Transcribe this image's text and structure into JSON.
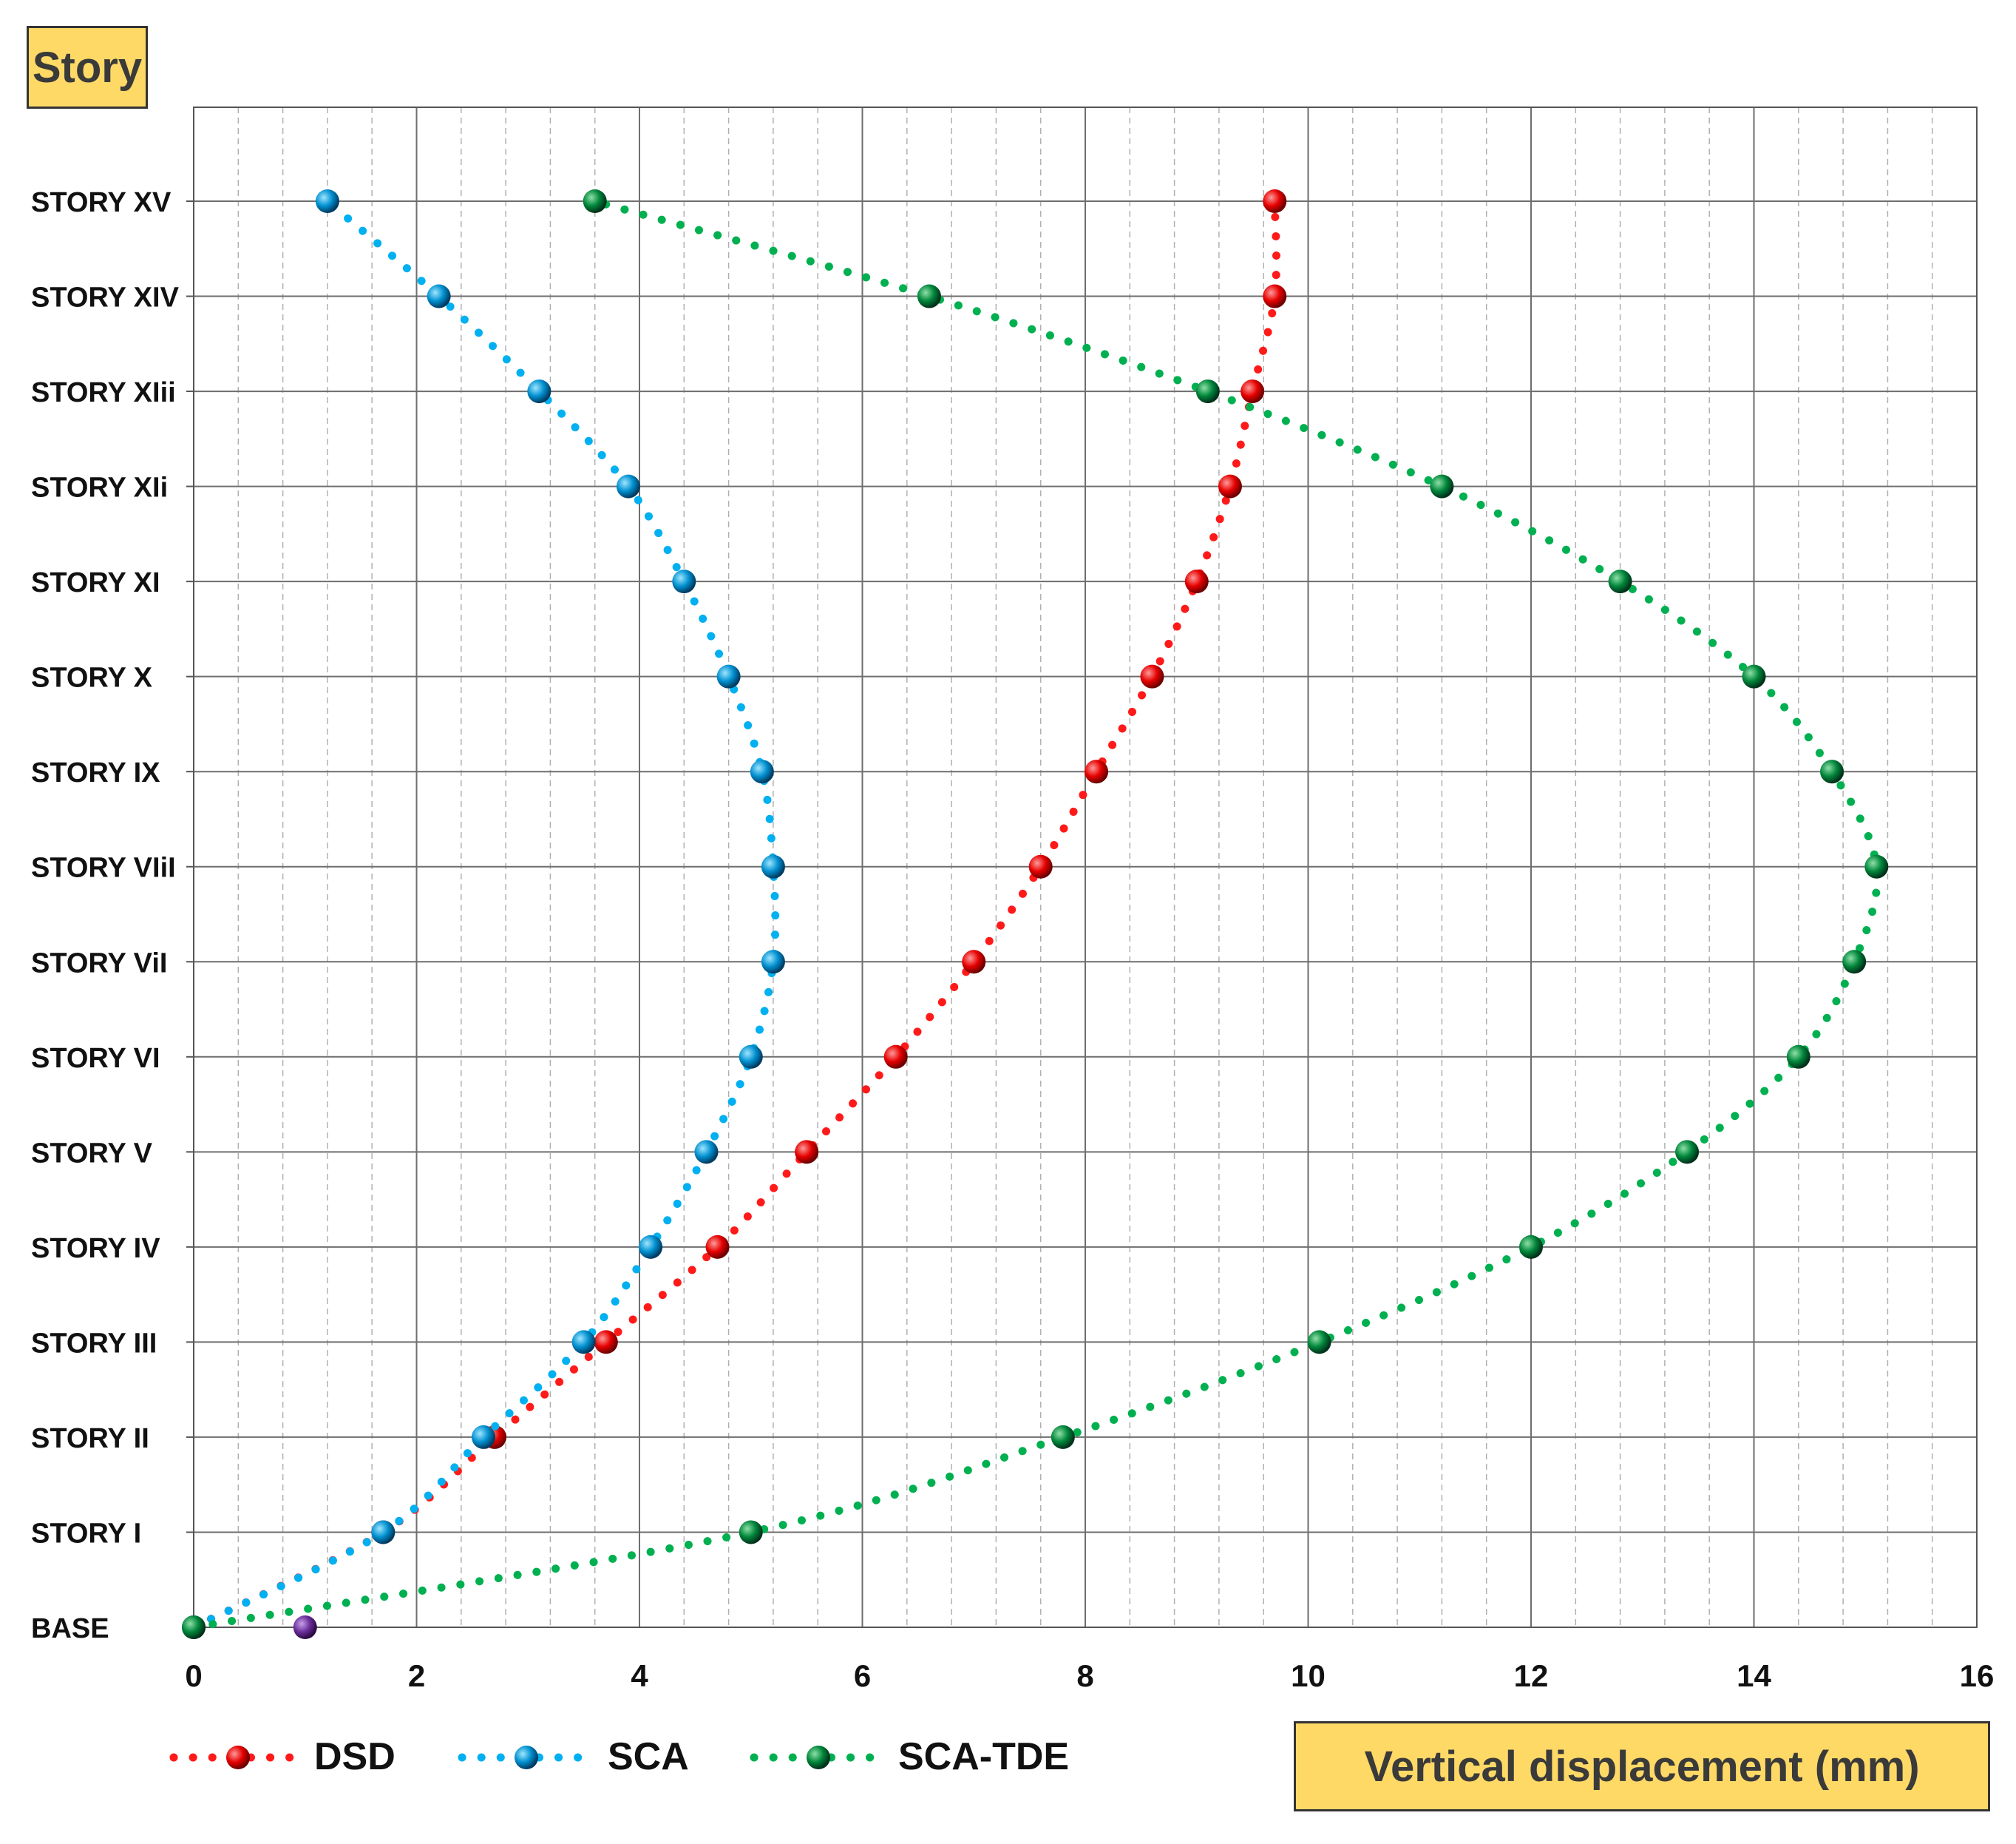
{
  "chart_data": {
    "type": "line",
    "xlabel": "Vertical displacement (mm)",
    "ylabel": "Story",
    "xlim": [
      0,
      16
    ],
    "x_ticks": [
      "0",
      "2",
      "4",
      "6",
      "8",
      "10",
      "12",
      "14",
      "16"
    ],
    "categories": [
      "BASE",
      "STORY I",
      "STORY II",
      "STORY III",
      "STORY IV",
      "STORY V",
      "STORY VI",
      "STORY ViI",
      "STORY VIiI",
      "STORY IX",
      "STORY X",
      "STORY XI",
      "STORY XIi",
      "STORY XIii",
      "STORY XIV",
      "STORY XV"
    ],
    "grid": true,
    "legend_position": "bottom-left",
    "series": [
      {
        "name": "DSD",
        "color": "#ff1a1a",
        "values": [
          0,
          1.7,
          2.7,
          3.7,
          4.7,
          5.5,
          6.3,
          7.0,
          7.6,
          8.1,
          8.6,
          9.0,
          9.3,
          9.5,
          9.7,
          9.7
        ]
      },
      {
        "name": "SCA",
        "color": "#00b0f0",
        "values": [
          0,
          1.7,
          2.6,
          3.5,
          4.1,
          4.6,
          5.0,
          5.2,
          5.2,
          5.1,
          4.8,
          4.4,
          3.9,
          3.1,
          2.2,
          1.2
        ]
      },
      {
        "name": "SCA-TDE",
        "color": "#00b050",
        "values": [
          0,
          5.0,
          7.8,
          10.1,
          12.0,
          13.4,
          14.4,
          14.9,
          15.1,
          14.7,
          14.0,
          12.8,
          11.2,
          9.1,
          6.6,
          3.6
        ]
      }
    ],
    "extra_points": [
      {
        "x": 1.0,
        "y": "BASE",
        "color": "#7030a0"
      }
    ]
  }
}
